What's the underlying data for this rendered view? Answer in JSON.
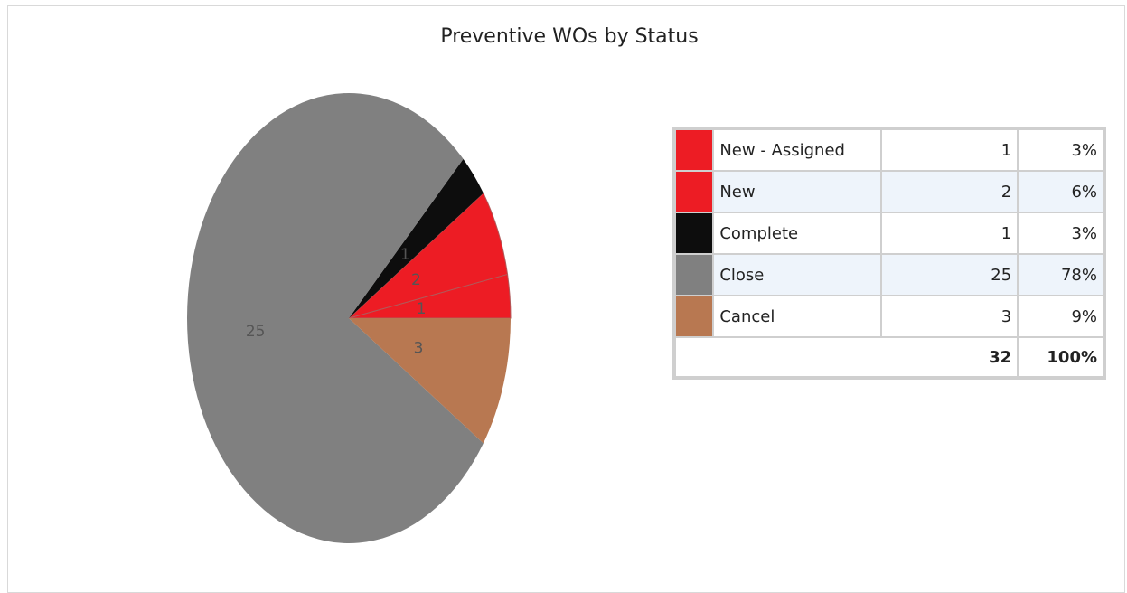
{
  "chart_data": {
    "type": "pie",
    "title": "Preventive WOs by Status",
    "slices": [
      {
        "label": "New - Assigned",
        "value": 1,
        "percent": "3%",
        "color": "#ed1c24"
      },
      {
        "label": "New",
        "value": 2,
        "percent": "6%",
        "color": "#ed1c24"
      },
      {
        "label": "Complete",
        "value": 1,
        "percent": "3%",
        "color": "#0d0d0d"
      },
      {
        "label": "Close",
        "value": 25,
        "percent": "78%",
        "color": "#808080"
      },
      {
        "label": "Cancel",
        "value": 3,
        "percent": "9%",
        "color": "#b87851"
      }
    ],
    "slice_labels": [
      "1",
      "2",
      "1",
      "25",
      "3"
    ],
    "legend_placement": "right",
    "total": {
      "count": "32",
      "percent": "100%"
    }
  }
}
